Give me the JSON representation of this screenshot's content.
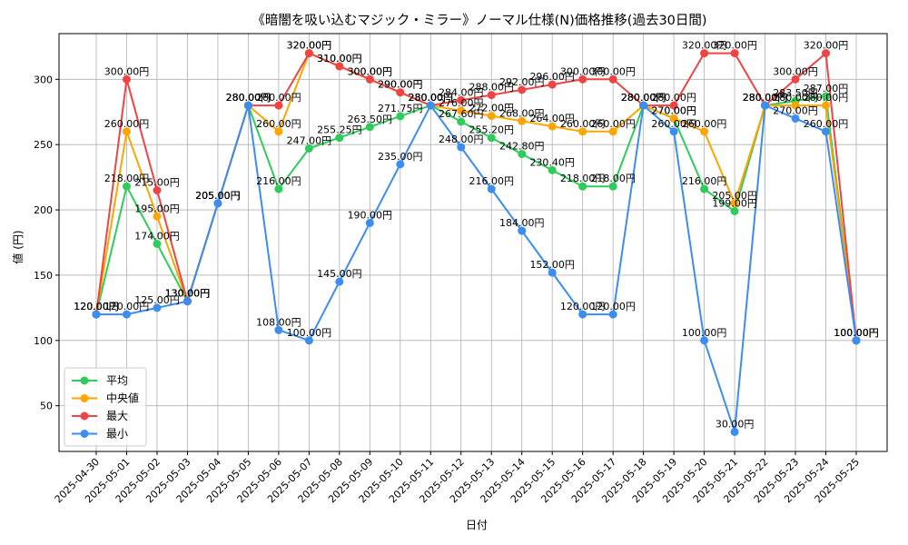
{
  "chart_data": {
    "type": "line",
    "title": "《暗闇を吸い込むマジック・ミラー》ノーマル仕様(N)価格推移(過去30日間)",
    "xlabel": "日付",
    "ylabel": "値 (円)",
    "ylim": [
      15,
      335
    ],
    "yticks": [
      50,
      100,
      150,
      200,
      250,
      300
    ],
    "grid": true,
    "legend_position": "lower-left",
    "value_suffix": "円",
    "categories": [
      "2025-04-30",
      "2025-05-01",
      "2025-05-02",
      "2025-05-03",
      "2025-05-04",
      "2025-05-05",
      "2025-05-06",
      "2025-05-07",
      "2025-05-08",
      "2025-05-09",
      "2025-05-10",
      "2025-05-11",
      "2025-05-12",
      "2025-05-13",
      "2025-05-14",
      "2025-05-15",
      "2025-05-16",
      "2025-05-17",
      "2025-05-18",
      "2025-05-19",
      "2025-05-20",
      "2025-05-21",
      "2025-05-22",
      "2025-05-23",
      "2025-05-24",
      "2025-05-25"
    ],
    "series": [
      {
        "name": "平均",
        "color": "#2ecc5a",
        "values": [
          120,
          218,
          174,
          130,
          205,
          280,
          216,
          247,
          255.25,
          263.5,
          271.75,
          280,
          267.6,
          255.2,
          242.8,
          230.4,
          218,
          218,
          280,
          270,
          216,
          199,
          280,
          283.5,
          287,
          100
        ]
      },
      {
        "name": "中央値",
        "color": "#ffa500",
        "values": [
          120,
          260,
          195,
          130,
          205,
          280,
          260,
          320,
          310,
          300,
          290,
          280,
          276,
          272,
          268,
          264,
          260,
          260,
          280,
          270,
          260,
          205,
          280,
          280,
          280,
          100
        ]
      },
      {
        "name": "最大",
        "color": "#ef4444",
        "values": [
          120,
          300,
          215,
          130,
          205,
          280,
          280,
          320,
          310,
          300,
          290,
          280,
          284,
          288,
          292,
          296,
          300,
          300,
          280,
          280,
          320,
          320,
          280,
          300,
          320,
          100
        ]
      },
      {
        "name": "最小",
        "color": "#3b8ef0",
        "values": [
          120,
          120,
          125,
          130,
          205,
          280,
          108,
          100,
          145,
          190,
          235,
          280,
          248,
          216,
          184,
          152,
          120,
          120,
          280,
          260,
          100,
          30,
          280,
          270,
          260,
          100
        ]
      }
    ]
  }
}
